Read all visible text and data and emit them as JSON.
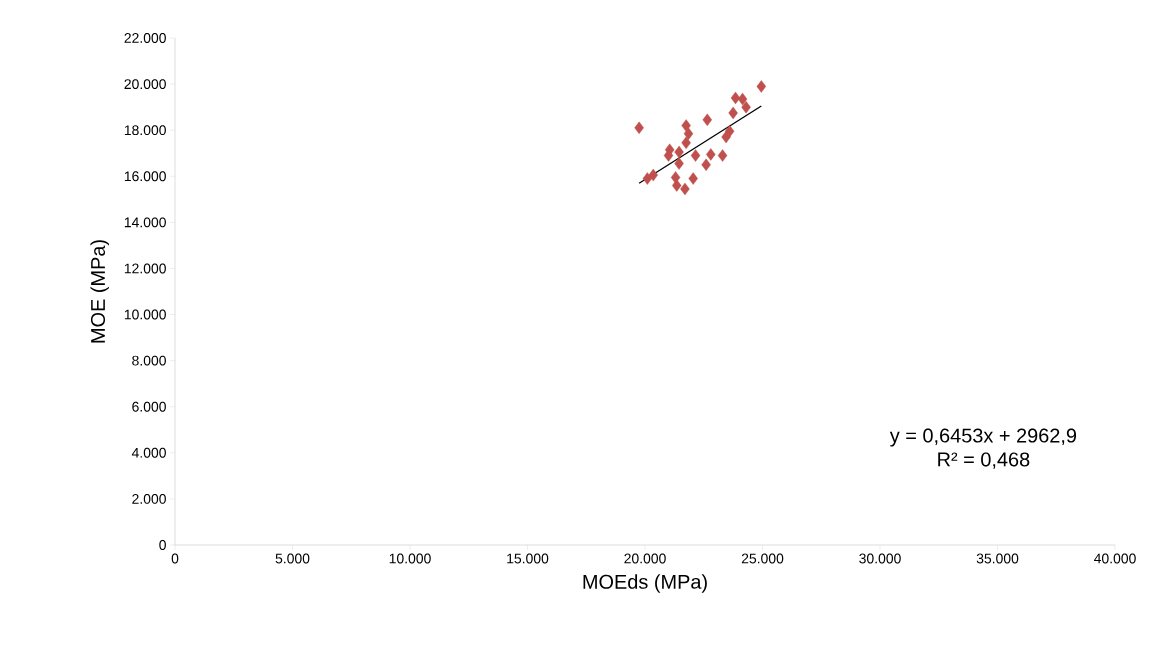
{
  "chart_data": {
    "type": "scatter",
    "xlabel": "MOEds (MPa)",
    "ylabel": "MOE (MPa)",
    "xlim": [
      0,
      40000
    ],
    "ylim": [
      0,
      22000
    ],
    "xticks": [
      0,
      {
        "value": 5000,
        "label": "5.000"
      },
      {
        "value": 10000,
        "label": "10.000"
      },
      {
        "value": 15000,
        "label": "15.000"
      },
      {
        "value": 20000,
        "label": "20.000"
      },
      {
        "value": 25000,
        "label": "25.000"
      },
      {
        "value": 30000,
        "label": "30.000"
      },
      {
        "value": 35000,
        "label": "35.000"
      },
      {
        "value": 40000,
        "label": "40.000"
      }
    ],
    "yticks": [
      0,
      {
        "value": 2000,
        "label": "2.000"
      },
      {
        "value": 4000,
        "label": "4.000"
      },
      {
        "value": 6000,
        "label": "6.000"
      },
      {
        "value": 8000,
        "label": "8.000"
      },
      {
        "value": 10000,
        "label": "10.000"
      },
      {
        "value": 12000,
        "label": "12.000"
      },
      {
        "value": 14000,
        "label": "14.000"
      },
      {
        "value": 16000,
        "label": "16.000"
      },
      {
        "value": 18000,
        "label": "18.000"
      },
      {
        "value": 20000,
        "label": "20.000"
      },
      {
        "value": 22000,
        "label": "22.000"
      }
    ],
    "grid": false,
    "legend": false,
    "marker": "diamond",
    "annotations": [
      "y = 0,6453x + 2962,9",
      "R² = 0,468"
    ],
    "series": [
      {
        "color": "#c0504d",
        "x": [
          19750,
          24950,
          23850,
          24150,
          24300,
          23750,
          22650,
          21750,
          21850,
          21750,
          21050,
          21000,
          21450,
          22150,
          21450,
          22800,
          23300,
          22600,
          23600,
          23450,
          20100,
          20350,
          21300,
          21350,
          21700,
          22050
        ],
        "values": [
          18100,
          19900,
          19400,
          19350,
          19000,
          18750,
          18450,
          18200,
          17850,
          17450,
          17150,
          16900,
          17050,
          16900,
          16550,
          16950,
          16900,
          16500,
          17950,
          17700,
          15900,
          16050,
          15950,
          15600,
          15450,
          15900
        ]
      },
      {
        "type": "line",
        "color": "#000000",
        "marker": "none",
        "line_style": "solid",
        "x": [
          19750,
          24950
        ],
        "values": [
          15700,
          19050
        ]
      }
    ]
  }
}
